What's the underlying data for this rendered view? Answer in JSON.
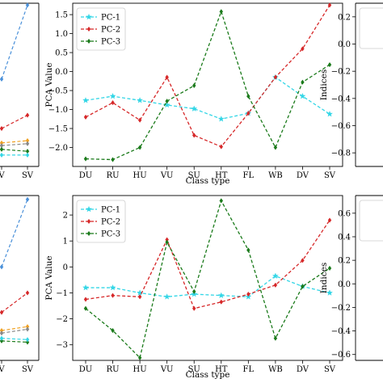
{
  "chart_data": [
    {
      "type": "line",
      "title": "",
      "xlabel": "Class type",
      "ylabel": "PCA Value",
      "categories": [
        "DU",
        "RU",
        "HU",
        "VU",
        "SU",
        "HT",
        "FL",
        "WB",
        "DV",
        "SV"
      ],
      "ylim": [
        -2.5,
        1.8
      ],
      "yticks": [
        -2.0,
        -1.5,
        -1.0,
        -0.5,
        0.0,
        0.5,
        1.0,
        1.5
      ],
      "ytick_labels": [
        "−2.0",
        "−1.5",
        "−1.0",
        "−0.5",
        "0.0",
        "0.5",
        "1.0",
        "1.5"
      ],
      "legend": "top-left",
      "series": [
        {
          "name": "PC-1",
          "color": "#33d6e6",
          "marker": "star",
          "values": [
            -0.76,
            -0.65,
            -0.76,
            -0.88,
            -0.98,
            -1.25,
            -1.1,
            -0.15,
            -0.65,
            -1.12
          ]
        },
        {
          "name": "PC-2",
          "color": "#d62728",
          "marker": "diamond",
          "values": [
            -1.2,
            -0.82,
            -1.28,
            -0.15,
            -1.68,
            -1.98,
            -1.1,
            -0.15,
            0.6,
            1.75
          ]
        },
        {
          "name": "PC-3",
          "color": "#1a7a1a",
          "marker": "diamond",
          "values": [
            -2.3,
            -2.32,
            -2.0,
            -0.78,
            -0.37,
            1.58,
            -0.65,
            -2.0,
            -0.28,
            0.18
          ]
        }
      ]
    },
    {
      "type": "line",
      "title": "",
      "xlabel": "Class type",
      "ylabel": "PCA Value",
      "categories": [
        "DU",
        "RU",
        "HU",
        "VU",
        "SU",
        "HT",
        "FL",
        "WB",
        "DV",
        "SV"
      ],
      "ylim": [
        -3.6,
        2.75
      ],
      "yticks": [
        -3,
        -2,
        -1,
        0,
        1,
        2
      ],
      "ytick_labels": [
        "−3",
        "−2",
        "−1",
        "0",
        "1",
        "2"
      ],
      "legend": "top-left",
      "series": [
        {
          "name": "PC-1",
          "color": "#33d6e6",
          "marker": "star",
          "values": [
            -0.8,
            -0.8,
            -1.0,
            -1.15,
            -1.05,
            -1.1,
            -1.15,
            -0.35,
            -0.75,
            -1.0
          ]
        },
        {
          "name": "PC-2",
          "color": "#d62728",
          "marker": "diamond",
          "values": [
            -1.25,
            -1.1,
            -1.15,
            1.05,
            -1.6,
            -1.35,
            -1.05,
            -0.7,
            0.25,
            1.8
          ]
        },
        {
          "name": "PC-3",
          "color": "#1a7a1a",
          "marker": "diamond",
          "values": [
            -1.6,
            -2.45,
            -3.5,
            0.95,
            -0.95,
            2.55,
            0.65,
            -2.75,
            -0.75,
            -0.05
          ]
        }
      ]
    },
    {
      "type": "line",
      "xlabel": "",
      "ylabel": "",
      "categories": [
        "V",
        "SV"
      ],
      "ylim": [
        -2.5,
        1.8
      ],
      "series": [
        {
          "color": "#4a90d9",
          "values": [
            -0.2,
            1.75
          ]
        },
        {
          "color": "#d62728",
          "values": [
            -1.5,
            -1.15
          ]
        },
        {
          "color": "#f0a020",
          "values": [
            -1.88,
            -1.82
          ]
        },
        {
          "color": "#888888",
          "values": [
            -1.95,
            -1.9
          ]
        },
        {
          "color": "#1a7a1a",
          "values": [
            -2.05,
            -2.1
          ]
        },
        {
          "color": "#33d6e6",
          "values": [
            -2.2,
            -2.2
          ]
        }
      ]
    },
    {
      "type": "line",
      "xlabel": "",
      "ylabel": "",
      "categories": [
        "V",
        "SV"
      ],
      "ylim": [
        -3.6,
        2.75
      ],
      "series": [
        {
          "color": "#4a90d9",
          "values": [
            0.0,
            2.6
          ]
        },
        {
          "color": "#d62728",
          "values": [
            -1.75,
            -1.0
          ]
        },
        {
          "color": "#f0a020",
          "values": [
            -2.45,
            -2.3
          ]
        },
        {
          "color": "#888888",
          "values": [
            -2.55,
            -2.4
          ]
        },
        {
          "color": "#1a7a1a",
          "values": [
            -2.85,
            -2.9
          ]
        },
        {
          "color": "#33d6e6",
          "values": [
            -2.75,
            -2.8
          ]
        }
      ]
    },
    {
      "type": "line",
      "ylabel": "Indices",
      "ylim": [
        -0.9,
        0.3
      ],
      "yticks": [
        0.2,
        0.0,
        -0.2,
        -0.4,
        -0.6,
        -0.8
      ],
      "ytick_labels": [
        "0.2",
        "0.0",
        "−0.2",
        "−0.4",
        "−0.6",
        "−0.8"
      ],
      "series": []
    },
    {
      "type": "line",
      "ylabel": "Indices",
      "ylim": [
        -0.65,
        0.75
      ],
      "yticks": [
        0.6,
        0.4,
        0.2,
        0.0,
        -0.2,
        -0.4,
        -0.6
      ],
      "ytick_labels": [
        "0.6",
        "0.4",
        "0.2",
        "0.0",
        "−0.2",
        "−0.4",
        "−0.6"
      ],
      "series": []
    }
  ]
}
